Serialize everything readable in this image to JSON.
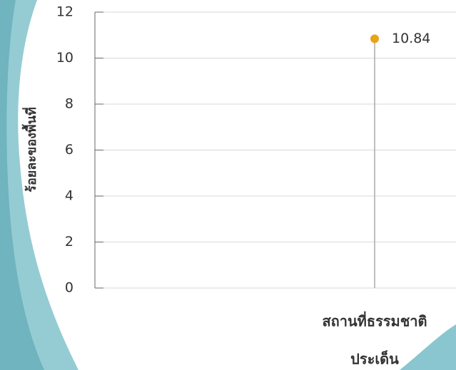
{
  "chart_data": {
    "type": "lollipop",
    "y_label": "ร้อยละของพื้นที่",
    "x_label": "ประเด็น",
    "categories": [
      "สถานที่ธรรมชาติ"
    ],
    "values": [
      10.84
    ],
    "color": "#e8a317",
    "stem_color": "#aaaaaa",
    "ylim": [
      0,
      12
    ],
    "yticks": [
      0,
      2,
      4,
      6,
      8,
      10,
      12
    ],
    "grid": true
  }
}
